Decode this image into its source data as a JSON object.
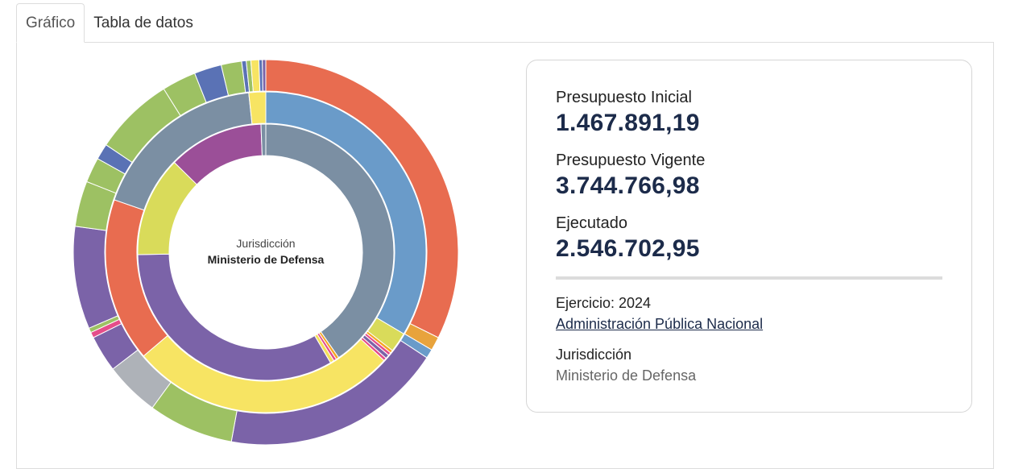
{
  "tabs": [
    {
      "label": "Gráfico"
    },
    {
      "label": "Tabla de datos"
    }
  ],
  "center": {
    "caption": "Jurisdicción",
    "name": "Ministerio de Defensa"
  },
  "summary": {
    "inicial_label": "Presupuesto Inicial",
    "inicial_value": "1.467.891,19",
    "vigente_label": "Presupuesto Vigente",
    "vigente_value": "3.744.766,98",
    "ejecutado_label": "Ejecutado",
    "ejecutado_value": "2.546.702,95",
    "ejercicio": "Ejercicio: 2024",
    "link": "Administración Pública Nacional",
    "jurisdiccion_label": "Jurisdicción",
    "jurisdiccion_value": "Ministerio de Defensa"
  },
  "chart_data": {
    "type": "sunburst",
    "title": "",
    "rings": [
      {
        "name": "inner",
        "slices": [
          {
            "name": "slice-1",
            "value": 33.5,
            "color": "#7b8fa3"
          },
          {
            "name": "slice-2",
            "value": 0.3,
            "color": "#f5a623"
          },
          {
            "name": "slice-3",
            "value": 0.3,
            "color": "#e54d8a"
          },
          {
            "name": "slice-4",
            "value": 0.4,
            "color": "#f5e05a"
          },
          {
            "name": "slice-5",
            "value": 27.5,
            "color": "#7b63a8"
          },
          {
            "name": "slice-6",
            "value": 10.5,
            "color": "#d9db5a"
          },
          {
            "name": "slice-7",
            "value": 10.0,
            "color": "#9b4f98"
          },
          {
            "name": "slice-8",
            "value": 0.5,
            "color": "#7b8fa3"
          }
        ]
      },
      {
        "name": "middle",
        "slices": [
          {
            "name": "slice-1",
            "value": 33.5,
            "color": "#6a9bc9"
          },
          {
            "name": "slice-2",
            "value": 2.0,
            "color": "#d9db5a"
          },
          {
            "name": "slice-3",
            "value": 0.3,
            "color": "#f5a623"
          },
          {
            "name": "slice-4",
            "value": 0.3,
            "color": "#e54d8a"
          },
          {
            "name": "slice-5",
            "value": 0.4,
            "color": "#7b63a8"
          },
          {
            "name": "slice-6",
            "value": 0.3,
            "color": "#e54d8a"
          },
          {
            "name": "slice-7",
            "value": 27.0,
            "color": "#f7e463"
          },
          {
            "name": "slice-8",
            "value": 16.5,
            "color": "#e86c50"
          },
          {
            "name": "slice-9",
            "value": 18.0,
            "color": "#7b8fa3"
          },
          {
            "name": "slice-10",
            "value": 1.7,
            "color": "#f7e463"
          }
        ]
      },
      {
        "name": "outer",
        "slices": [
          {
            "name": "slice-1",
            "value": 33.8,
            "color": "#e86c50"
          },
          {
            "name": "slice-2",
            "value": 1.2,
            "color": "#e8a33c"
          },
          {
            "name": "slice-3",
            "value": 0.8,
            "color": "#6a9bc9"
          },
          {
            "name": "slice-4",
            "value": 19.5,
            "color": "#7b63a8"
          },
          {
            "name": "slice-5",
            "value": 7.5,
            "color": "#9dc163"
          },
          {
            "name": "slice-6",
            "value": 4.8,
            "color": "#aeb2b8"
          },
          {
            "name": "slice-7",
            "value": 3.2,
            "color": "#7b63a8"
          },
          {
            "name": "slice-8",
            "value": 0.5,
            "color": "#e54d8a"
          },
          {
            "name": "slice-9",
            "value": 0.4,
            "color": "#9dc163"
          },
          {
            "name": "slice-10",
            "value": 9.0,
            "color": "#7b63a8"
          },
          {
            "name": "slice-11",
            "value": 4.0,
            "color": "#9dc163"
          },
          {
            "name": "slice-12",
            "value": 2.2,
            "color": "#9dc163"
          },
          {
            "name": "slice-13",
            "value": 1.4,
            "color": "#5a72b5"
          },
          {
            "name": "slice-14",
            "value": 7.0,
            "color": "#9dc163"
          },
          {
            "name": "slice-15",
            "value": 3.0,
            "color": "#9dc163"
          },
          {
            "name": "slice-16",
            "value": 2.4,
            "color": "#5a72b5"
          },
          {
            "name": "slice-17",
            "value": 1.8,
            "color": "#9dc163"
          },
          {
            "name": "slice-18",
            "value": 0.4,
            "color": "#5a72b5"
          },
          {
            "name": "slice-19",
            "value": 0.4,
            "color": "#9dc163"
          },
          {
            "name": "slice-20",
            "value": 0.7,
            "color": "#f7e463"
          },
          {
            "name": "slice-21",
            "value": 0.3,
            "color": "#5a72b5"
          },
          {
            "name": "slice-22",
            "value": 0.3,
            "color": "#7b63a8"
          }
        ]
      }
    ]
  }
}
